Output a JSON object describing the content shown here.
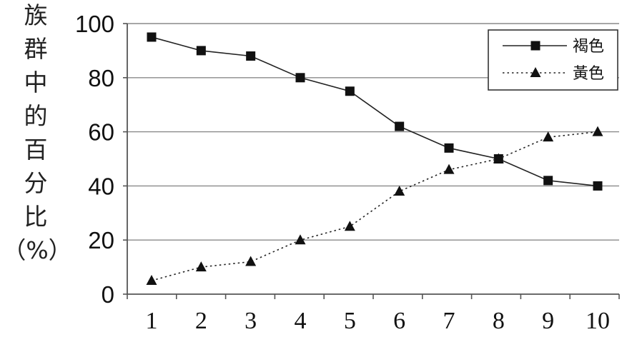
{
  "chart_data": {
    "type": "line",
    "ylabel": "族群中的百分比（%）",
    "ylabel_chars": [
      "族",
      "群",
      "中",
      "的",
      "百",
      "分",
      "比",
      "（%）"
    ],
    "x": [
      1,
      2,
      3,
      4,
      5,
      6,
      7,
      8,
      9,
      10
    ],
    "ylim": [
      0,
      100
    ],
    "yticks": [
      0,
      20,
      40,
      60,
      80,
      100
    ],
    "grid": "horizontal",
    "legend_position": "top-right",
    "series": [
      {
        "name": "褐色",
        "marker": "square",
        "line_style": "solid",
        "values": [
          95,
          90,
          88,
          80,
          75,
          62,
          54,
          50,
          42,
          40
        ]
      },
      {
        "name": "黃色",
        "marker": "triangle",
        "line_style": "dotted",
        "values": [
          5,
          10,
          12,
          20,
          25,
          38,
          46,
          50,
          58,
          60
        ]
      }
    ]
  }
}
